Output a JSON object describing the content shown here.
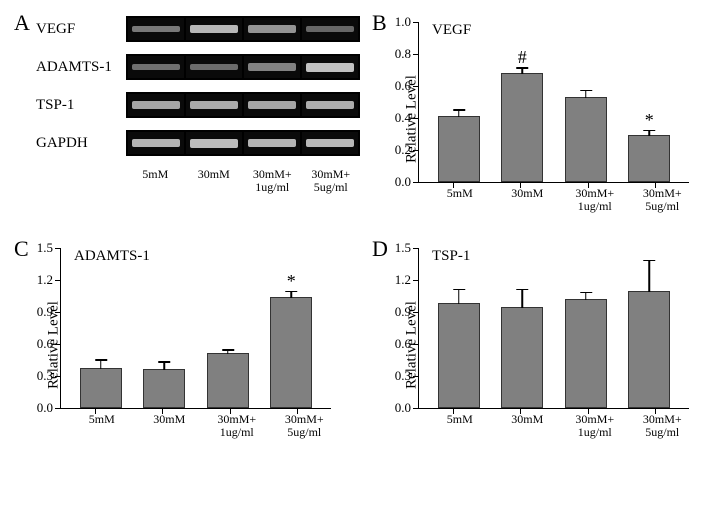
{
  "panelA": {
    "label": "A",
    "rows": [
      {
        "name": "VEGF",
        "intensities": [
          0.45,
          0.8,
          0.6,
          0.35
        ]
      },
      {
        "name": "ADAMTS-1",
        "intensities": [
          0.4,
          0.38,
          0.5,
          0.85
        ]
      },
      {
        "name": "TSP-1",
        "intensities": [
          0.7,
          0.72,
          0.7,
          0.74
        ]
      },
      {
        "name": "GAPDH",
        "intensities": [
          0.78,
          0.82,
          0.78,
          0.8
        ]
      }
    ],
    "xlabels": [
      "5mM",
      "30mM",
      "30mM+\n1ug/ml",
      "30mM+\n5ug/ml"
    ]
  },
  "charts": [
    {
      "panel_label": "B",
      "title": "VEGF",
      "ylabel": "Relative Level",
      "ymax": 1.0,
      "ytick_step": 0.2,
      "decimals": 1,
      "bar_color": "#808080",
      "categories": [
        "5mM",
        "30mM",
        "30mM+\n1ug/ml",
        "30mM+\n5ug/ml"
      ],
      "values": [
        0.4,
        0.67,
        0.52,
        0.28
      ],
      "errors": [
        0.05,
        0.04,
        0.05,
        0.04
      ],
      "sigs": [
        "",
        "#",
        "",
        "*"
      ]
    },
    {
      "panel_label": "C",
      "title": "ADAMTS-1",
      "ylabel": "Relative Level",
      "ymax": 1.5,
      "ytick_step": 0.3,
      "decimals": 1,
      "bar_color": "#808080",
      "categories": [
        "5mM",
        "30mM",
        "30mM+\n1ug/ml",
        "30mM+\n5ug/ml"
      ],
      "values": [
        0.36,
        0.35,
        0.5,
        1.02
      ],
      "errors": [
        0.09,
        0.08,
        0.04,
        0.07
      ],
      "sigs": [
        "",
        "",
        "",
        "*"
      ]
    },
    {
      "panel_label": "D",
      "title": "TSP-1",
      "ylabel": "Relative Level",
      "ymax": 1.5,
      "ytick_step": 0.3,
      "decimals": 1,
      "bar_color": "#808080",
      "categories": [
        "5mM",
        "30mM",
        "30mM+\n1ug/ml",
        "30mM+\n5ug/ml"
      ],
      "values": [
        0.97,
        0.93,
        1.0,
        1.08
      ],
      "errors": [
        0.14,
        0.18,
        0.08,
        0.3
      ],
      "sigs": [
        "",
        "",
        "",
        ""
      ]
    }
  ],
  "style": {
    "band_base_color": "200,200,200",
    "bar_border": "#333333",
    "axis_color": "#000000",
    "font": "Times New Roman"
  }
}
